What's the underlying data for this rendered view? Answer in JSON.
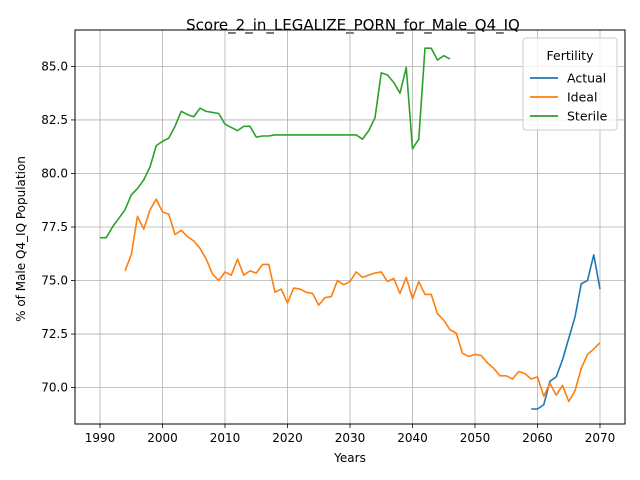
{
  "chart_data": {
    "type": "line",
    "title": "Score_2_in_LEGALIZE_PORN_for_Male_Q4_IQ",
    "xlabel": "Years",
    "ylabel": "% of Male Q4_IQ Population",
    "xlim": [
      1986.0,
      2074.0
    ],
    "ylim": [
      68.3,
      86.7
    ],
    "xticks": [
      1990,
      2000,
      2010,
      2020,
      2030,
      2040,
      2050,
      2060,
      2070
    ],
    "yticks": [
      70.0,
      72.5,
      75.0,
      77.5,
      80.0,
      82.5,
      85.0
    ],
    "grid": true,
    "legend": {
      "title": "Fertility",
      "placement": "top-right"
    },
    "series": [
      {
        "name": "Actual",
        "color": "#1f77b4",
        "points": [
          [
            2059,
            69.0
          ],
          [
            2060,
            69.0
          ],
          [
            2061,
            69.2
          ],
          [
            2062,
            70.3
          ],
          [
            2063,
            70.5
          ],
          [
            2064,
            71.3
          ],
          [
            2065,
            72.3
          ],
          [
            2066,
            73.3
          ],
          [
            2067,
            74.85
          ],
          [
            2068,
            75.0
          ],
          [
            2069,
            76.2
          ],
          [
            2070,
            74.6
          ]
        ]
      },
      {
        "name": "Ideal",
        "color": "#ff7f0e",
        "points": [
          [
            1994,
            75.45
          ],
          [
            1995,
            76.2
          ],
          [
            1996,
            78.0
          ],
          [
            1997,
            77.4
          ],
          [
            1998,
            78.3
          ],
          [
            1999,
            78.8
          ],
          [
            2000,
            78.2
          ],
          [
            2001,
            78.1
          ],
          [
            2002,
            77.15
          ],
          [
            2003,
            77.35
          ],
          [
            2004,
            77.05
          ],
          [
            2005,
            76.85
          ],
          [
            2006,
            76.5
          ],
          [
            2007,
            76.0
          ],
          [
            2008,
            75.3
          ],
          [
            2009,
            75.0
          ],
          [
            2010,
            75.4
          ],
          [
            2011,
            75.25
          ],
          [
            2012,
            76.0
          ],
          [
            2013,
            75.25
          ],
          [
            2014,
            75.45
          ],
          [
            2015,
            75.35
          ],
          [
            2016,
            75.75
          ],
          [
            2017,
            75.75
          ],
          [
            2018,
            74.45
          ],
          [
            2019,
            74.6
          ],
          [
            2020,
            73.95
          ],
          [
            2021,
            74.65
          ],
          [
            2022,
            74.6
          ],
          [
            2023,
            74.45
          ],
          [
            2024,
            74.4
          ],
          [
            2025,
            73.85
          ],
          [
            2026,
            74.2
          ],
          [
            2027,
            74.25
          ],
          [
            2028,
            75.0
          ],
          [
            2029,
            74.8
          ],
          [
            2030,
            74.95
          ],
          [
            2031,
            75.4
          ],
          [
            2032,
            75.15
          ],
          [
            2033,
            75.25
          ],
          [
            2034,
            75.35
          ],
          [
            2035,
            75.4
          ],
          [
            2036,
            74.95
          ],
          [
            2037,
            75.1
          ],
          [
            2038,
            74.4
          ],
          [
            2039,
            75.15
          ],
          [
            2040,
            74.15
          ],
          [
            2041,
            74.95
          ],
          [
            2042,
            74.35
          ],
          [
            2043,
            74.35
          ],
          [
            2044,
            73.45
          ],
          [
            2045,
            73.15
          ],
          [
            2046,
            72.7
          ],
          [
            2047,
            72.55
          ],
          [
            2048,
            71.6
          ],
          [
            2049,
            71.45
          ],
          [
            2050,
            71.55
          ],
          [
            2051,
            71.5
          ],
          [
            2052,
            71.15
          ],
          [
            2053,
            70.9
          ],
          [
            2054,
            70.55
          ],
          [
            2055,
            70.55
          ],
          [
            2056,
            70.4
          ],
          [
            2057,
            70.75
          ],
          [
            2058,
            70.65
          ],
          [
            2059,
            70.4
          ],
          [
            2060,
            70.5
          ],
          [
            2061,
            69.6
          ],
          [
            2062,
            70.2
          ],
          [
            2063,
            69.65
          ],
          [
            2064,
            70.1
          ],
          [
            2065,
            69.35
          ],
          [
            2066,
            69.85
          ],
          [
            2067,
            70.9
          ],
          [
            2068,
            71.55
          ],
          [
            2069,
            71.8
          ],
          [
            2070,
            72.1
          ]
        ]
      },
      {
        "name": "Sterile",
        "color": "#2ca02c",
        "points": [
          [
            1990,
            77.0
          ],
          [
            1991,
            77.0
          ],
          [
            1992,
            77.5
          ],
          [
            1993,
            77.9
          ],
          [
            1994,
            78.3
          ],
          [
            1995,
            79.0
          ],
          [
            1996,
            79.3
          ],
          [
            1997,
            79.7
          ],
          [
            1998,
            80.3
          ],
          [
            1999,
            81.3
          ],
          [
            2000,
            81.5
          ],
          [
            2001,
            81.65
          ],
          [
            2002,
            82.2
          ],
          [
            2003,
            82.9
          ],
          [
            2004,
            82.75
          ],
          [
            2005,
            82.65
          ],
          [
            2006,
            83.05
          ],
          [
            2007,
            82.9
          ],
          [
            2008,
            82.85
          ],
          [
            2009,
            82.8
          ],
          [
            2010,
            82.3
          ],
          [
            2011,
            82.15
          ],
          [
            2012,
            82.0
          ],
          [
            2013,
            82.2
          ],
          [
            2014,
            82.2
          ],
          [
            2015,
            81.7
          ],
          [
            2016,
            81.75
          ],
          [
            2017,
            81.75
          ],
          [
            2018,
            81.8
          ],
          [
            2019,
            81.8
          ],
          [
            2020,
            81.8
          ],
          [
            2021,
            81.8
          ],
          [
            2022,
            81.8
          ],
          [
            2023,
            81.8
          ],
          [
            2024,
            81.8
          ],
          [
            2025,
            81.8
          ],
          [
            2026,
            81.8
          ],
          [
            2027,
            81.8
          ],
          [
            2028,
            81.8
          ],
          [
            2029,
            81.8
          ],
          [
            2030,
            81.8
          ],
          [
            2031,
            81.8
          ],
          [
            2032,
            81.6
          ],
          [
            2033,
            82.0
          ],
          [
            2034,
            82.6
          ],
          [
            2035,
            84.7
          ],
          [
            2036,
            84.6
          ],
          [
            2037,
            84.25
          ],
          [
            2038,
            83.75
          ],
          [
            2039,
            84.95
          ],
          [
            2040,
            81.15
          ],
          [
            2041,
            81.6
          ],
          [
            2042,
            85.85
          ],
          [
            2043,
            85.85
          ],
          [
            2044,
            85.3
          ],
          [
            2045,
            85.5
          ],
          [
            2046,
            85.35
          ]
        ]
      }
    ]
  }
}
